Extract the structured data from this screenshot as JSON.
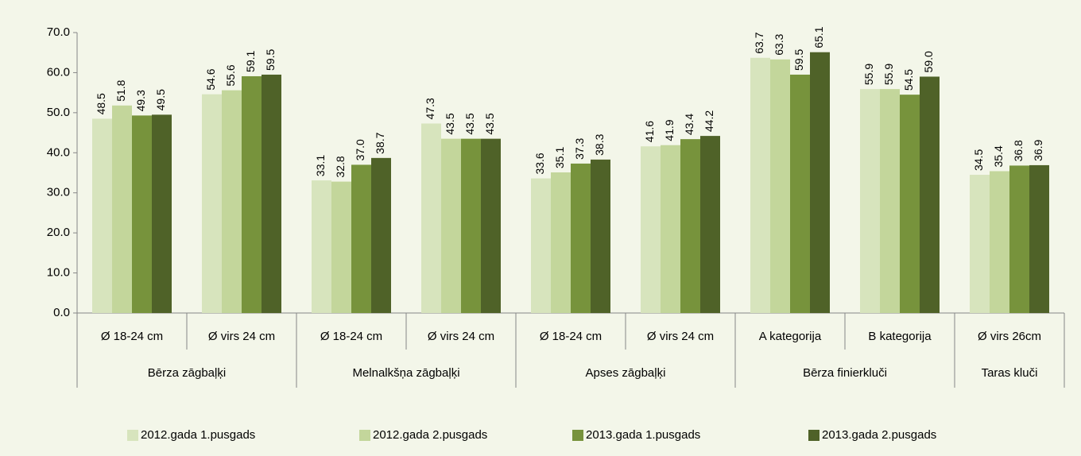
{
  "chart_data": {
    "type": "bar",
    "groups": [
      {
        "name": "Bērza zāgbaļķi",
        "categories": [
          "Ø 18-24 cm",
          "Ø virs 24 cm"
        ]
      },
      {
        "name": "Melnalkšņa zāgbaļķi",
        "categories": [
          "Ø 18-24 cm",
          "Ø virs 24 cm"
        ]
      },
      {
        "name": "Apses zāgbaļķi",
        "categories": [
          "Ø 18-24 cm",
          "Ø virs 24 cm"
        ]
      },
      {
        "name": "Bērza finierkluči",
        "categories": [
          "A kategorija",
          "B kategorija"
        ]
      },
      {
        "name": "Taras kluči",
        "categories": [
          "Ø virs 26cm"
        ]
      }
    ],
    "series": [
      {
        "name": "2012.gada 1.pusgads",
        "color": "#d7e4bd",
        "values": [
          48.5,
          54.6,
          33.1,
          47.3,
          33.6,
          41.6,
          63.7,
          55.9,
          34.5
        ],
        "value_labels": [
          "48.5",
          "54.6",
          "33.1",
          "47.3",
          "33.6",
          "41.6",
          "63.7",
          "55.9",
          "34.5"
        ]
      },
      {
        "name": "2012.gada 2.pusgads",
        "color": "#c3d69b",
        "values": [
          51.8,
          55.6,
          32.8,
          43.5,
          35.1,
          41.9,
          63.3,
          55.9,
          35.4
        ],
        "value_labels": [
          "51.8",
          "55.6",
          "32.8",
          "43.5",
          "35.1",
          "41.9",
          "63.3",
          "55.9",
          "35.4"
        ]
      },
      {
        "name": "2013.gada 1.pusgads",
        "color": "#77933c",
        "values": [
          49.3,
          59.1,
          37.0,
          43.5,
          37.3,
          43.4,
          59.5,
          54.5,
          36.8
        ],
        "value_labels": [
          "49.3",
          "59.1",
          "37.0",
          "43.5",
          "37.3",
          "43.4",
          "59.5",
          "54.5",
          "36.8"
        ]
      },
      {
        "name": "2013.gada 2.pusgads",
        "color": "#4f6228",
        "values": [
          49.5,
          59.5,
          38.7,
          43.5,
          38.3,
          44.2,
          65.1,
          59.0,
          36.9
        ],
        "value_labels": [
          "49.5",
          "59.5",
          "38.7",
          "43.5",
          "38.3",
          "44.2",
          "65.1",
          "59.0",
          "36.9"
        ]
      }
    ],
    "ylim": [
      0,
      70
    ],
    "yticks": [
      {
        "value": 0,
        "label": "0.0"
      },
      {
        "value": 10,
        "label": "10.0"
      },
      {
        "value": 20,
        "label": "20.0"
      },
      {
        "value": 30,
        "label": "30.0"
      },
      {
        "value": 40,
        "label": "40.0"
      },
      {
        "value": 50,
        "label": "50.0"
      },
      {
        "value": 60,
        "label": "60.0"
      },
      {
        "value": 70,
        "label": "70.0"
      }
    ],
    "grid": false,
    "legend": "bottom"
  }
}
